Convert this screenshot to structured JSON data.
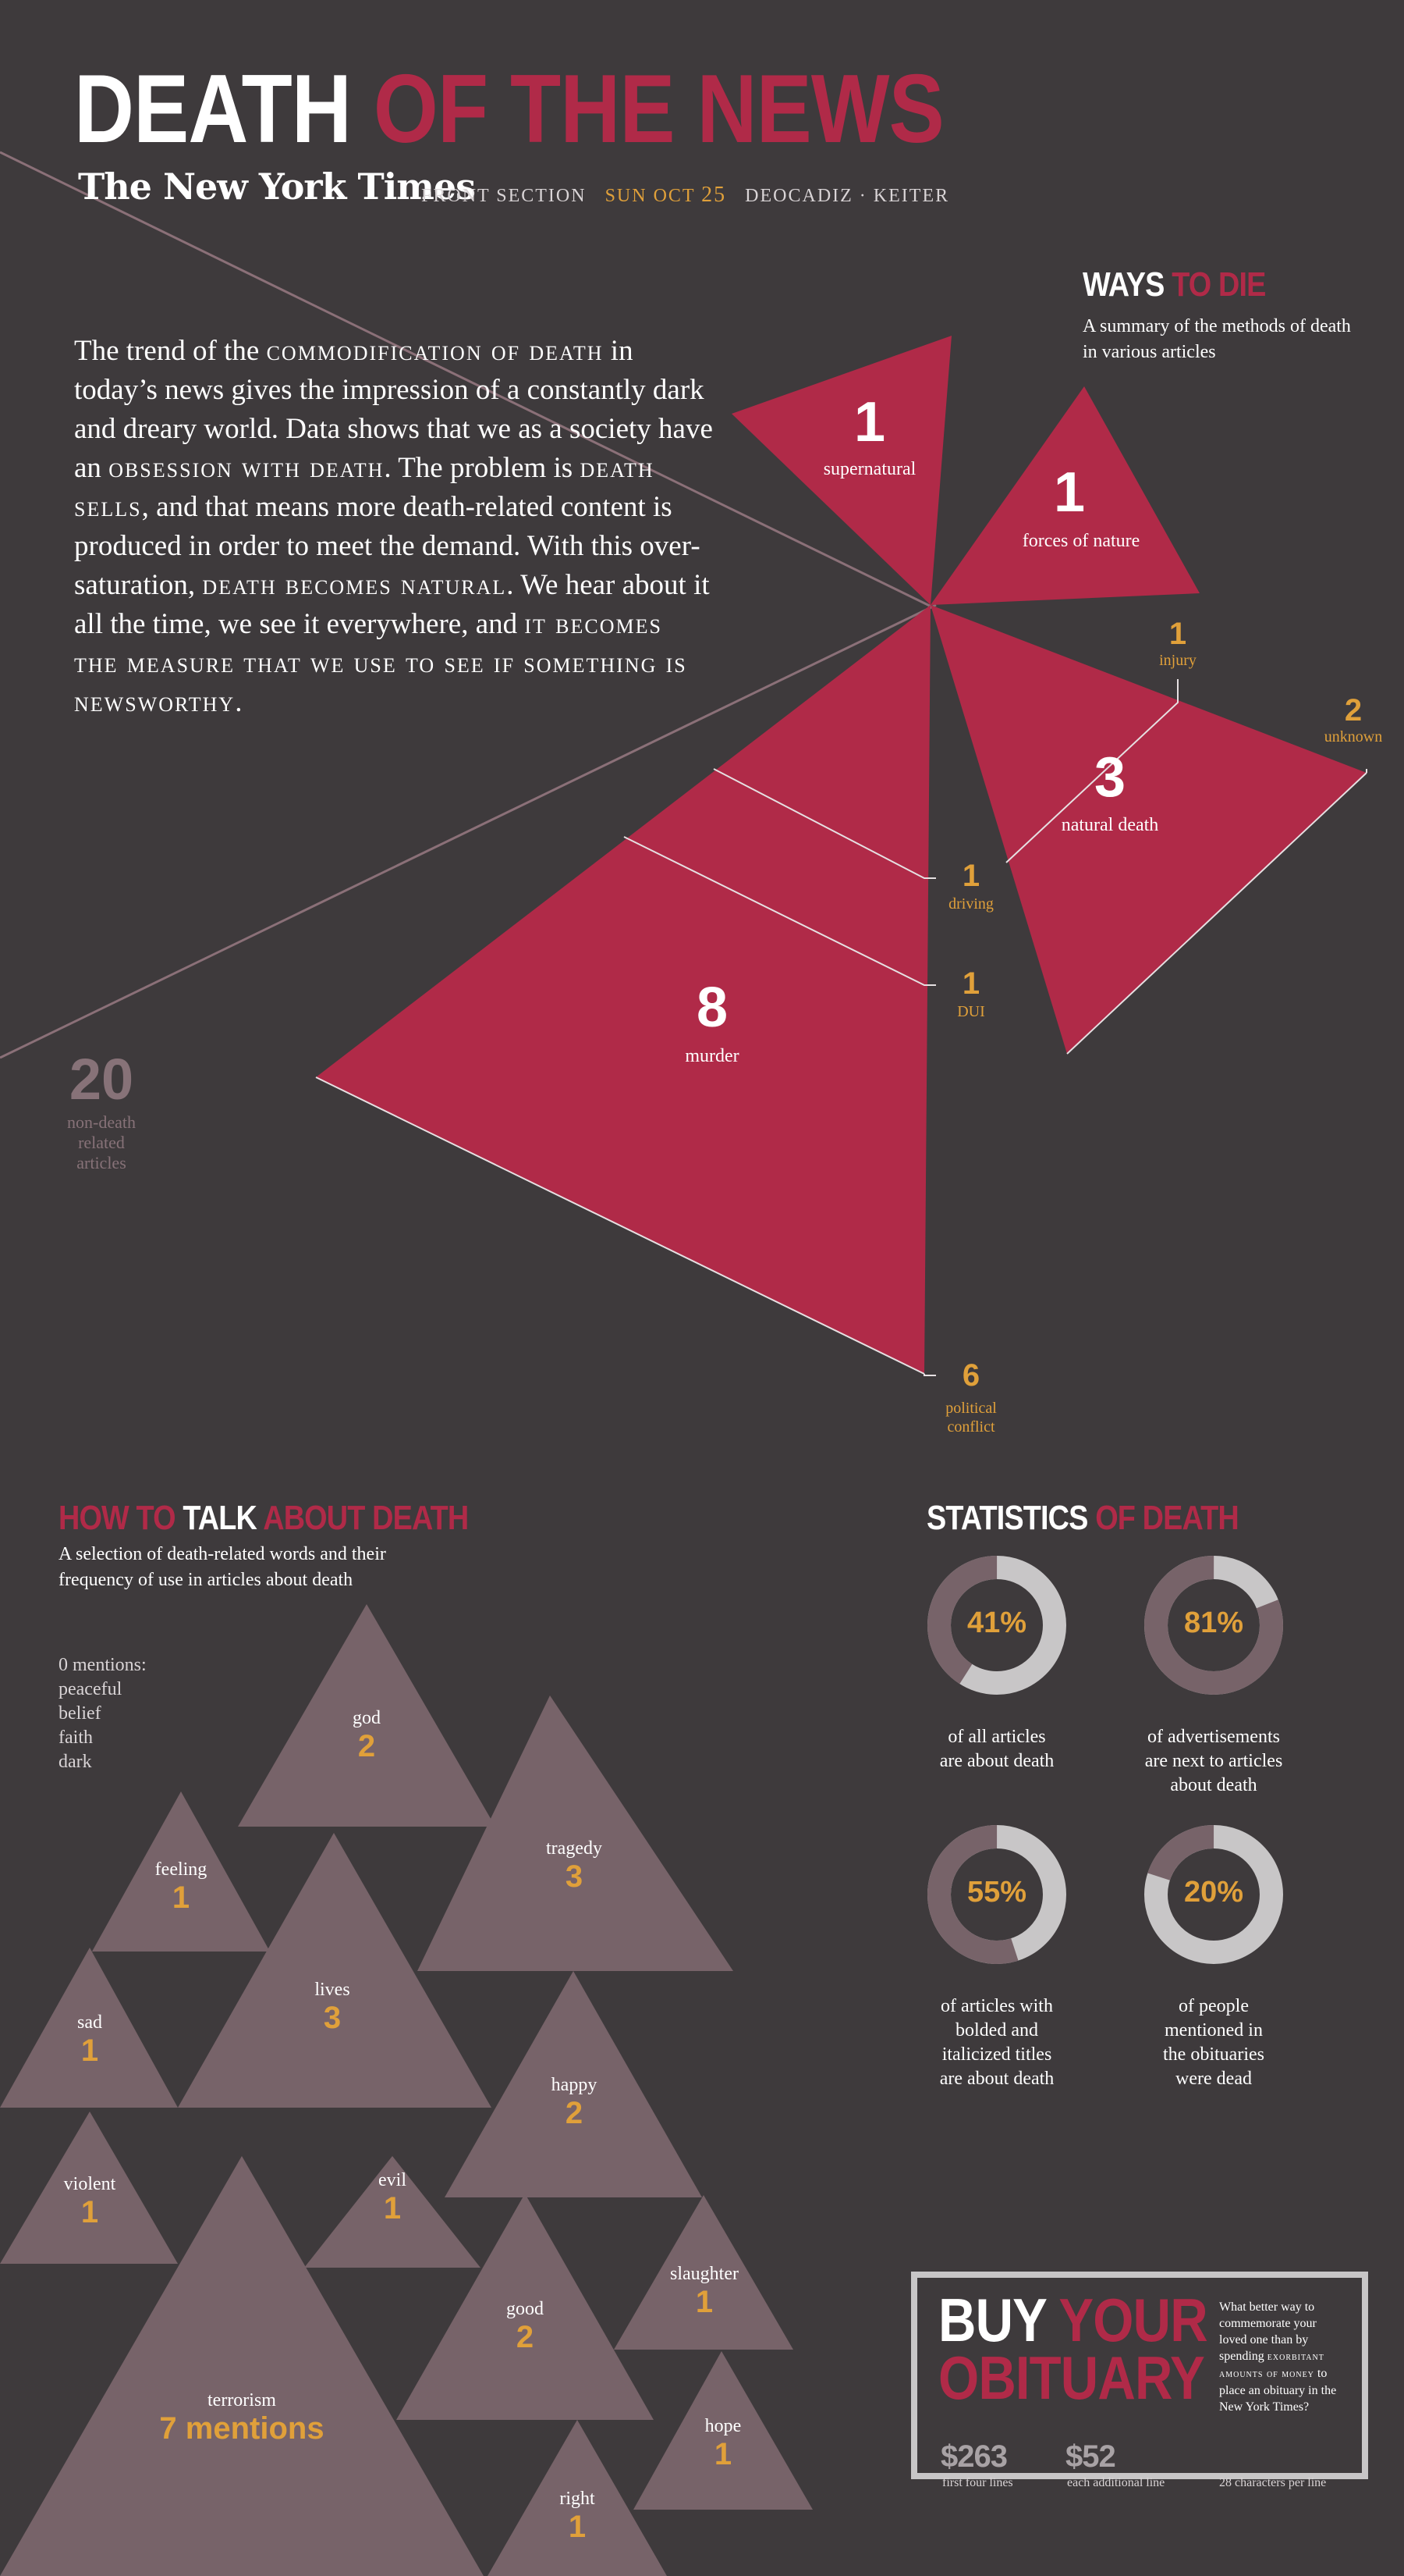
{
  "header": {
    "title_part1": "DEATH",
    "title_part2": "OF THE NEWS",
    "publication": "The New York Times",
    "section": "FRONT SECTION",
    "date_prefix": "SUN OCT",
    "date_day": "25",
    "authors": "DEOCADIZ · KEITER"
  },
  "intro": {
    "t1": "The trend of the ",
    "t2": "commodification of death",
    "t3": " in today’s news gives the impression of a constantly dark and dreary world. Data shows that we as a society have an ",
    "t4": "obsession with death",
    "t5": ". The problem is ",
    "t6": "death sells",
    "t7": ", and that means more death-related content is produced in order to meet the demand. With this over-saturation, ",
    "t8": "death becomes natural",
    "t9": ". We hear about it all the time, we see it everywhere, and ",
    "t10": "it becomes the measure that we use to see if something is newsworthy."
  },
  "ways_to_die": {
    "title_part1": "WAYS",
    "title_part2": "TO DIE",
    "description": "A summary of the methods of death in various articles",
    "non_death": {
      "count": "20",
      "label_line1": "non-death",
      "label_line2": "related",
      "label_line3": "articles"
    },
    "categories": [
      {
        "label": "supernatural",
        "count": "1"
      },
      {
        "label": "forces of nature",
        "count": "1"
      },
      {
        "label": "natural death",
        "count": "3"
      },
      {
        "label": "murder",
        "count": "8"
      },
      {
        "label": "injury",
        "count": "1"
      },
      {
        "label": "unknown",
        "count": "2"
      },
      {
        "label": "driving",
        "count": "1"
      },
      {
        "label": "DUI",
        "count": "1"
      },
      {
        "label": "political conflict",
        "count": "6"
      }
    ],
    "political_line1": "political",
    "political_line2": "conflict"
  },
  "how_to_talk": {
    "title_part1": "HOW TO",
    "title_part2": "TALK",
    "title_part3": "ABOUT DEATH",
    "description": "A selection of death-related words and their frequency of use in articles about death",
    "zero_heading": "0 mentions:",
    "zero_words": [
      "peaceful",
      "belief",
      "faith",
      "dark"
    ],
    "words": [
      {
        "word": "god",
        "count": "2"
      },
      {
        "word": "tragedy",
        "count": "3"
      },
      {
        "word": "feeling",
        "count": "1"
      },
      {
        "word": "lives",
        "count": "3"
      },
      {
        "word": "sad",
        "count": "1"
      },
      {
        "word": "happy",
        "count": "2"
      },
      {
        "word": "violent",
        "count": "1"
      },
      {
        "word": "evil",
        "count": "1"
      },
      {
        "word": "slaughter",
        "count": "1"
      },
      {
        "word": "good",
        "count": "2"
      },
      {
        "word": "terrorism",
        "count": "7 mentions"
      },
      {
        "word": "hope",
        "count": "1"
      },
      {
        "word": "right",
        "count": "1"
      }
    ]
  },
  "statistics": {
    "title_part1": "STATISTICS",
    "title_part2": "OF DEATH",
    "items": [
      {
        "percent": "41%",
        "value": 0.41,
        "line1": "of all articles",
        "line2": "are about death",
        "line3": "",
        "line4": ""
      },
      {
        "percent": "81%",
        "value": 0.81,
        "line1": "of advertisements",
        "line2": "are next to articles",
        "line3": "about death",
        "line4": ""
      },
      {
        "percent": "55%",
        "value": 0.55,
        "line1": "of articles with",
        "line2": "bolded and",
        "line3": "italicized titles",
        "line4": "are about death"
      },
      {
        "percent": "20%",
        "value": 0.2,
        "line1": "of people",
        "line2": "mentioned in",
        "line3": "the obituaries",
        "line4": "were dead"
      }
    ]
  },
  "obituary": {
    "title_part1": "BUY",
    "title_part2": "YOUR",
    "title_part3": "OBITUARY",
    "text_a": "What better way to commemorate your loved one than by spending ",
    "text_b": "exorbitant amounts of money",
    "text_c": " to place an obituary in the New York Times?",
    "price1": "$263",
    "price1_label": "first four lines",
    "price2": "$52",
    "price2_label": "each additional line",
    "note": "28 characters per line"
  },
  "colors": {
    "background": "#3e3a3c",
    "accent_red": "#b02a48",
    "accent_orange": "#e0a03a",
    "muted_mauve": "#776369",
    "light_gray": "#c8c6c7"
  }
}
